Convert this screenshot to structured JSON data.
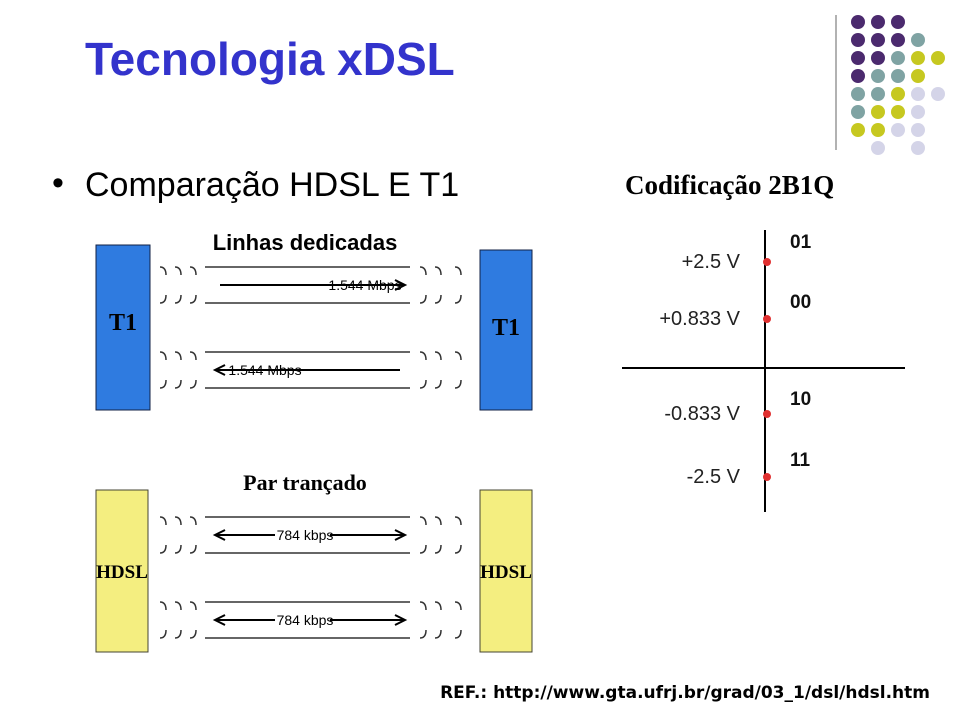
{
  "slide": {
    "title": "Tecnologia xDSL",
    "bullet": "Comparação HDSL E T1",
    "reference": "REF.: http://www.gta.ufrj.br/grad/03_1/dsl/hdsl.htm"
  },
  "t1_diagram": {
    "label": "Linhas dedicadas",
    "left_box": "T1",
    "right_box": "T1",
    "lines": [
      "1.544 Mbps",
      "1.544 Mbps"
    ]
  },
  "hdsl_diagram": {
    "label": "Par trançado",
    "left_box": "HDSL",
    "right_box": "HDSL",
    "lines": [
      "784 kbps",
      "784 kbps"
    ]
  },
  "coding": {
    "title": "Codificação 2B1Q",
    "levels": [
      {
        "voltage": "+2.5 V",
        "bits": "01"
      },
      {
        "voltage": "+0.833 V",
        "bits": "00"
      },
      {
        "voltage": "-0.833 V",
        "bits": "10"
      },
      {
        "voltage": "-2.5 V",
        "bits": "11"
      }
    ]
  }
}
